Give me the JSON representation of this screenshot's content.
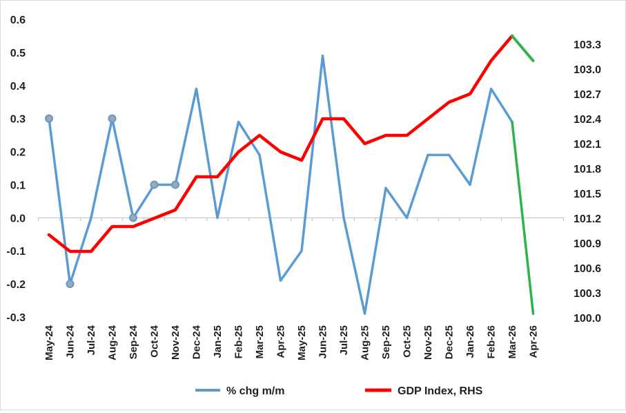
{
  "chart_data": {
    "type": "line",
    "categories": [
      "May-24",
      "Jun-24",
      "Jul-24",
      "Aug-24",
      "Sep-24",
      "Oct-24",
      "Nov-24",
      "Dec-24",
      "Jan-25",
      "Feb-25",
      "Mar-25",
      "Apr-25",
      "May-25",
      "Jun-25",
      "Jul-25",
      "Aug-25",
      "Sep-25",
      "Oct-25",
      "Nov-25",
      "Dec-25",
      "Jan-26",
      "Feb-26",
      "Mar-26",
      "Apr-26"
    ],
    "y_left": {
      "range": [
        -0.3,
        0.6
      ],
      "ticks": [
        "-0.3",
        "-0.2",
        "-0.1",
        "0.0",
        "0.1",
        "0.2",
        "0.3",
        "0.4",
        "0.5",
        "0.6"
      ]
    },
    "y_right": {
      "range": [
        100.0,
        103.6
      ],
      "ticks": [
        "100.0",
        "100.3",
        "100.6",
        "100.9",
        "101.2",
        "101.5",
        "101.8",
        "102.1",
        "102.4",
        "102.7",
        "103.0",
        "103.3"
      ]
    },
    "series": [
      {
        "name": "% chg m/m",
        "axis": "left",
        "color": "#5b9bd5",
        "values": [
          0.3,
          -0.2,
          0.0,
          0.3,
          0.0,
          0.1,
          0.1,
          0.39,
          0.0,
          0.29,
          0.19,
          -0.19,
          -0.1,
          0.49,
          0.0,
          -0.29,
          0.09,
          0.0,
          0.19,
          0.19,
          0.1,
          0.39,
          0.29,
          -0.29
        ],
        "markers_at": [
          0,
          1,
          3,
          4,
          5,
          6
        ],
        "forecast_from": 22,
        "forecast_color": "#2db34a"
      },
      {
        "name": "GDP Index, RHS",
        "axis": "right",
        "color": "#ff0000",
        "values": [
          101.0,
          100.8,
          100.8,
          101.1,
          101.1,
          101.2,
          101.3,
          101.7,
          101.7,
          102.0,
          102.2,
          102.0,
          101.9,
          102.4,
          102.4,
          102.1,
          102.2,
          102.2,
          102.4,
          102.6,
          102.7,
          103.1,
          103.4,
          103.1
        ],
        "forecast_from": 22,
        "forecast_color": "#2db34a"
      }
    ],
    "legend_position": "bottom",
    "grid": false
  }
}
